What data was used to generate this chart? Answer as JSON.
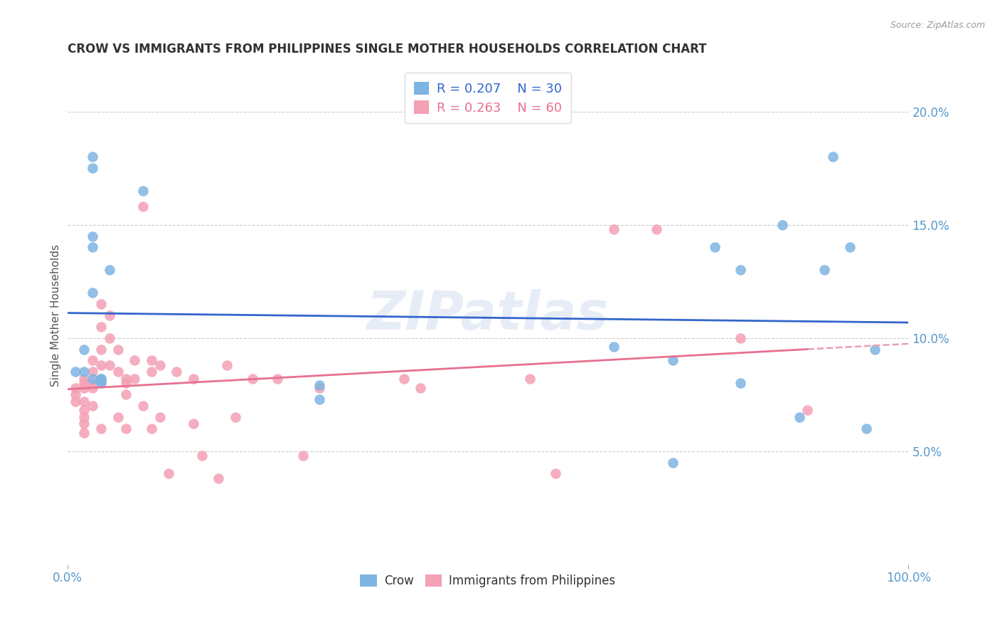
{
  "title": "CROW VS IMMIGRANTS FROM PHILIPPINES SINGLE MOTHER HOUSEHOLDS CORRELATION CHART",
  "source": "Source: ZipAtlas.com",
  "ylabel": "Single Mother Households",
  "xlim": [
    0,
    1.0
  ],
  "ylim": [
    0,
    0.22
  ],
  "crow_color": "#7EB4E2",
  "phil_color": "#F4A0B5",
  "crow_line_color": "#3366CC",
  "phil_line_color": "#E87090",
  "phil_line_dashed_color": "#E8A0B0",
  "watermark_text": "ZIPatlas",
  "legend_R_crow": "R = 0.207",
  "legend_N_crow": "N = 30",
  "legend_R_phil": "R = 0.263",
  "legend_N_phil": "N = 60",
  "crow_x": [
    0.01,
    0.02,
    0.02,
    0.03,
    0.03,
    0.03,
    0.03,
    0.03,
    0.03,
    0.04,
    0.04,
    0.04,
    0.04,
    0.05,
    0.09,
    0.3,
    0.3,
    0.65,
    0.72,
    0.72,
    0.77,
    0.8,
    0.8,
    0.85,
    0.87,
    0.9,
    0.91,
    0.93,
    0.95,
    0.96
  ],
  "crow_y": [
    0.085,
    0.095,
    0.085,
    0.175,
    0.18,
    0.145,
    0.14,
    0.12,
    0.082,
    0.082,
    0.082,
    0.081,
    0.08,
    0.13,
    0.165,
    0.079,
    0.073,
    0.096,
    0.09,
    0.045,
    0.14,
    0.13,
    0.08,
    0.15,
    0.065,
    0.13,
    0.18,
    0.14,
    0.06,
    0.095
  ],
  "phil_x": [
    0.01,
    0.01,
    0.01,
    0.02,
    0.02,
    0.02,
    0.02,
    0.02,
    0.02,
    0.02,
    0.02,
    0.03,
    0.03,
    0.03,
    0.03,
    0.03,
    0.04,
    0.04,
    0.04,
    0.04,
    0.04,
    0.05,
    0.05,
    0.05,
    0.06,
    0.06,
    0.06,
    0.07,
    0.07,
    0.07,
    0.07,
    0.08,
    0.08,
    0.09,
    0.09,
    0.1,
    0.1,
    0.1,
    0.11,
    0.11,
    0.12,
    0.13,
    0.15,
    0.15,
    0.16,
    0.18,
    0.19,
    0.2,
    0.22,
    0.25,
    0.28,
    0.3,
    0.4,
    0.42,
    0.55,
    0.58,
    0.65,
    0.7,
    0.8,
    0.88
  ],
  "phil_y": [
    0.078,
    0.075,
    0.072,
    0.082,
    0.08,
    0.078,
    0.072,
    0.068,
    0.065,
    0.062,
    0.058,
    0.09,
    0.085,
    0.08,
    0.078,
    0.07,
    0.115,
    0.105,
    0.095,
    0.088,
    0.06,
    0.11,
    0.1,
    0.088,
    0.095,
    0.085,
    0.065,
    0.082,
    0.08,
    0.075,
    0.06,
    0.09,
    0.082,
    0.158,
    0.07,
    0.09,
    0.085,
    0.06,
    0.088,
    0.065,
    0.04,
    0.085,
    0.082,
    0.062,
    0.048,
    0.038,
    0.088,
    0.065,
    0.082,
    0.082,
    0.048,
    0.078,
    0.082,
    0.078,
    0.082,
    0.04,
    0.148,
    0.148,
    0.1,
    0.068
  ],
  "background_color": "#FFFFFF",
  "grid_color": "#CCCCCC"
}
